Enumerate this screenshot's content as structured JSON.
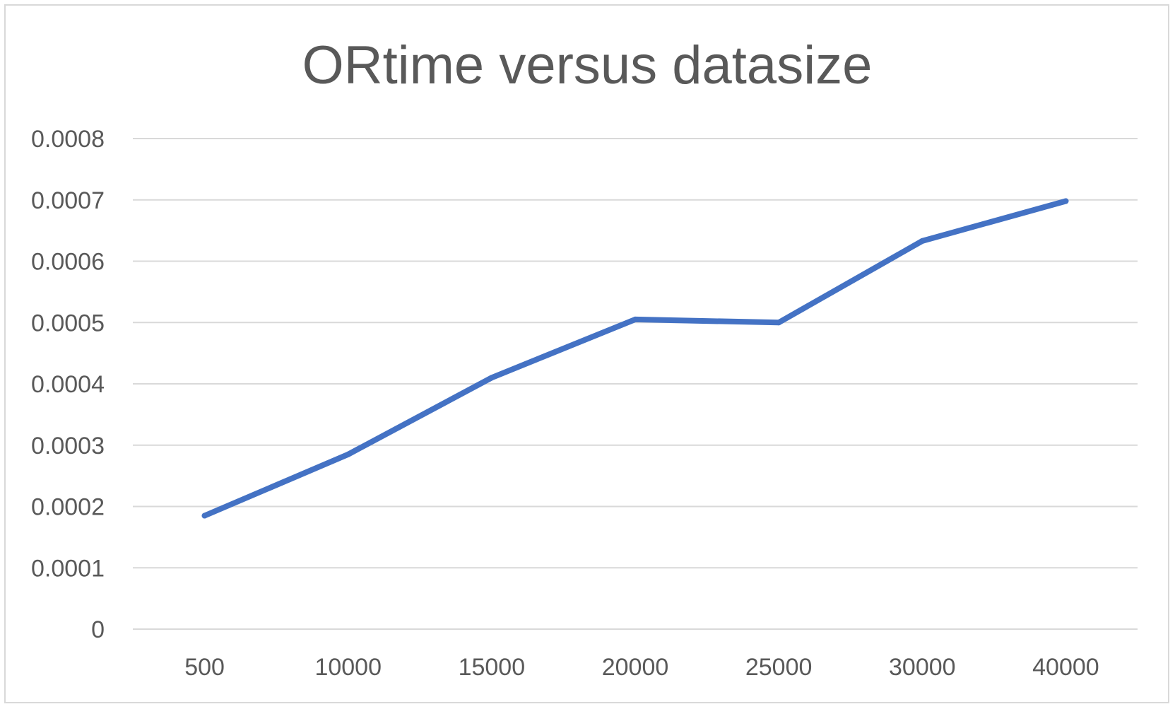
{
  "chart_data": {
    "type": "line",
    "title": "ORtime versus datasize",
    "xlabel": "",
    "ylabel": "",
    "categories": [
      "500",
      "10000",
      "15000",
      "20000",
      "25000",
      "30000",
      "40000"
    ],
    "series": [
      {
        "values": [
          0.000185,
          0.000285,
          0.00041,
          0.000505,
          0.0005,
          0.000633,
          0.000698
        ],
        "color": "#4472C4"
      }
    ],
    "ylim": [
      0,
      0.0008
    ],
    "yticks": [
      "0",
      "0.0001",
      "0.0002",
      "0.0003",
      "0.0004",
      "0.0005",
      "0.0006",
      "0.0007",
      "0.0008"
    ],
    "grid": true,
    "legend": "none"
  }
}
